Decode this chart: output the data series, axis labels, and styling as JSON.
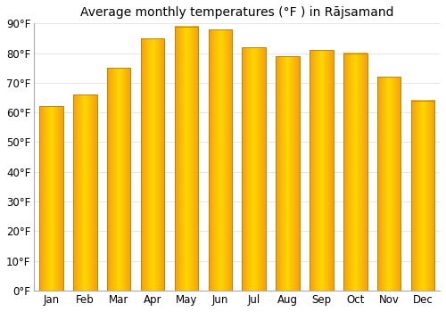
{
  "title": "Average monthly temperatures (°F ) in Rājsamand",
  "months": [
    "Jan",
    "Feb",
    "Mar",
    "Apr",
    "May",
    "Jun",
    "Jul",
    "Aug",
    "Sep",
    "Oct",
    "Nov",
    "Dec"
  ],
  "values": [
    62,
    66,
    75,
    85,
    89,
    88,
    82,
    79,
    81,
    80,
    72,
    64
  ],
  "bar_color_center": "#FFD700",
  "bar_color_edge": "#F4A010",
  "bar_outline_color": "#B8860B",
  "ylim": [
    0,
    90
  ],
  "yticks": [
    0,
    10,
    20,
    30,
    40,
    50,
    60,
    70,
    80,
    90
  ],
  "ytick_labels": [
    "0°F",
    "10°F",
    "20°F",
    "30°F",
    "40°F",
    "50°F",
    "60°F",
    "70°F",
    "80°F",
    "90°F"
  ],
  "bg_color": "#FFFFFF",
  "grid_color": "#E0E0E0",
  "title_fontsize": 10,
  "tick_fontsize": 8.5,
  "bar_width": 0.7
}
